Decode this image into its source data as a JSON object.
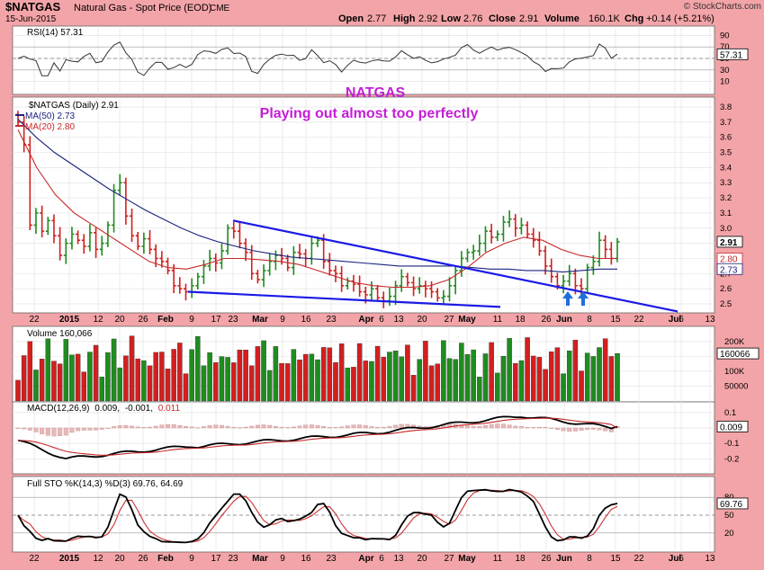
{
  "header": {
    "symbol": "$NATGAS",
    "name": "Natural Gas - Spot Price (EOD)",
    "exchange": "CME",
    "date": "15-Jun-2015",
    "watermark": "© StockCharts.com",
    "quote": {
      "open_label": "Open",
      "open": "2.77",
      "high_label": "High",
      "high": "2.92",
      "low_label": "Low",
      "low": "2.76",
      "close_label": "Close",
      "close": "2.91",
      "volume_label": "Volume",
      "volume": "160.1K",
      "chg_label": "Chg",
      "chg": "+0.14 (+5.21%)"
    }
  },
  "annotations": {
    "title": "NATGAS",
    "subtitle": "Playing out almost too perfectly"
  },
  "colors": {
    "background": "#f3a4a8",
    "panel": "#ffffff",
    "up": "#1f8c1f",
    "down": "#d21f1f",
    "ma50": "#1a237e",
    "ma20": "#c62828",
    "trendline": "#1a1ae6",
    "annotation": "#c41ed6",
    "stoch_k": "#000000",
    "stoch_d": "#cc3333"
  },
  "legend": {
    "rsi": "RSI(14) 57.31",
    "price": "$NATGAS (Daily) 2.91",
    "ma50": "MA(50) 2.73",
    "ma20": "MA(20) 2.80",
    "volume": "Volume 160,066",
    "macd": {
      "label": "MACD(12,26,9)",
      "v1": "0.009,",
      "v2": "-0.001,",
      "v3": "0.011"
    },
    "sto": "Full STO %K(14,3) %D(3) 69.76, 64.69"
  },
  "axis_labels": {
    "rsi_ticks": [
      "90",
      "70",
      "50",
      "30",
      "10"
    ],
    "rsi_value": "57.31",
    "price_ticks": [
      "3.8",
      "3.7",
      "3.6",
      "3.5",
      "3.4",
      "3.3",
      "3.2",
      "3.1",
      "3.0",
      "2.9",
      "2.8",
      "2.7",
      "2.6",
      "2.5"
    ],
    "price_flags": [
      "2.91",
      "2.80",
      "2.73"
    ],
    "volume_ticks": [
      "200K",
      "150K",
      "100K",
      "50000"
    ],
    "volume_value": "160066",
    "macd_ticks": [
      "0.1",
      "0.0",
      "-0.1",
      "-0.2"
    ],
    "macd_value": "0.009",
    "sto_ticks": [
      "80",
      "50",
      "20"
    ],
    "sto_value": "69.76",
    "date_ticks": [
      "22",
      "2015",
      "12",
      "20",
      "26",
      "Feb",
      "9",
      "17",
      "23",
      "Mar",
      "9",
      "16",
      "23",
      "Apr",
      "6",
      "13",
      "20",
      "27",
      "May",
      "11",
      "18",
      "26",
      "Jun",
      "8",
      "15",
      "22",
      "Jul",
      "6",
      "13"
    ]
  },
  "chart_data": {
    "type": "ohlc",
    "title": "$NATGAS Natural Gas - Spot Price (EOD)",
    "x_axis": "date",
    "x_range": [
      "2014-12-22",
      "2015-07-13"
    ],
    "y_range": [
      2.45,
      3.85
    ],
    "last": {
      "open": 2.77,
      "high": 2.92,
      "low": 2.76,
      "close": 2.91,
      "volume": 160066
    },
    "price_closes": [
      3.7,
      3.55,
      3.02,
      3.1,
      2.98,
      3.05,
      2.95,
      2.82,
      2.9,
      2.96,
      2.92,
      2.88,
      2.97,
      2.86,
      2.9,
      3.02,
      3.25,
      3.3,
      3.08,
      2.95,
      2.88,
      2.93,
      2.86,
      2.8,
      2.78,
      2.72,
      2.62,
      2.6,
      2.58,
      2.62,
      2.68,
      2.75,
      2.8,
      2.77,
      2.85,
      3.0,
      2.98,
      2.9,
      2.84,
      2.7,
      2.66,
      2.72,
      2.78,
      2.82,
      2.8,
      2.74,
      2.84,
      2.83,
      2.8,
      2.9,
      2.92,
      2.78,
      2.72,
      2.7,
      2.62,
      2.65,
      2.63,
      2.58,
      2.56,
      2.6,
      2.54,
      2.52,
      2.55,
      2.62,
      2.68,
      2.64,
      2.6,
      2.62,
      2.6,
      2.58,
      2.54,
      2.55,
      2.62,
      2.72,
      2.8,
      2.84,
      2.85,
      2.9,
      2.98,
      2.94,
      2.96,
      3.04,
      3.06,
      3.0,
      3.02,
      2.96,
      2.92,
      2.85,
      2.75,
      2.68,
      2.62,
      2.65,
      2.7,
      2.62,
      2.6,
      2.74,
      2.78,
      2.92,
      2.86,
      2.8,
      2.91
    ],
    "ma50": [
      3.72,
      3.6,
      3.5,
      3.42,
      3.34,
      3.26,
      3.19,
      3.12,
      3.06,
      3.0,
      2.95,
      2.91,
      2.88,
      2.85,
      2.83,
      2.81,
      2.8,
      2.79,
      2.78,
      2.77,
      2.76,
      2.75,
      2.75,
      2.75,
      2.75,
      2.74,
      2.73,
      2.73,
      2.72,
      2.72,
      2.71,
      2.72,
      2.73,
      2.73
    ],
    "ma20": [
      3.65,
      3.4,
      3.22,
      3.1,
      3.02,
      2.94,
      2.86,
      2.78,
      2.74,
      2.73,
      2.76,
      2.8,
      2.8,
      2.79,
      2.78,
      2.76,
      2.72,
      2.68,
      2.64,
      2.62,
      2.61,
      2.61,
      2.62,
      2.66,
      2.74,
      2.84,
      2.9,
      2.94,
      2.92,
      2.86,
      2.82,
      2.8,
      2.8
    ],
    "trendlines": [
      {
        "from": [
          "2015-02-23",
          3.05
        ],
        "to": [
          "2015-07-06",
          2.45
        ]
      },
      {
        "from": [
          "2015-02-10",
          2.58
        ],
        "to": [
          "2015-05-08",
          2.48
        ]
      }
    ],
    "rsi": {
      "label": "RSI(14)",
      "last": 57.31,
      "ylim": [
        0,
        100
      ]
    },
    "volume": {
      "last": 160066,
      "ylim": [
        0,
        230000
      ]
    },
    "macd": {
      "params": "12,26,9",
      "macd": 0.009,
      "signal": -0.001,
      "histogram": 0.011,
      "ylim": [
        -0.28,
        0.14
      ]
    },
    "stochastic": {
      "params": "%K(14,3) %D(3)",
      "k": 69.76,
      "d": 64.69,
      "ylim": [
        0,
        100
      ]
    }
  }
}
